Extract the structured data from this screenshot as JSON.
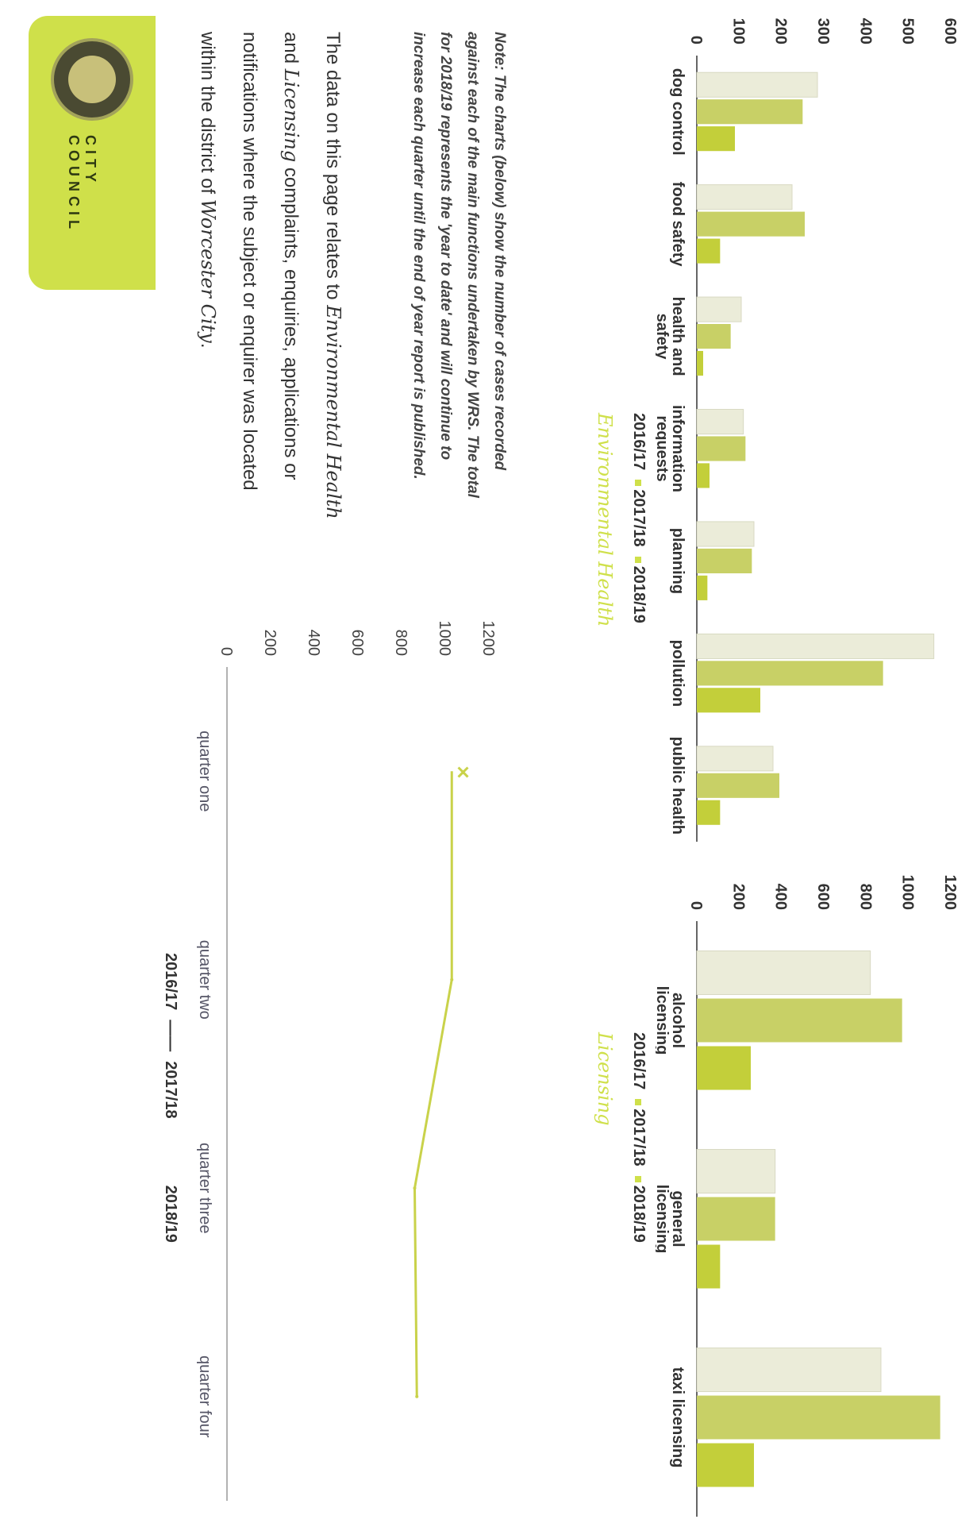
{
  "header": {
    "org_name": "CITY COUNCIL"
  },
  "intro": {
    "line1": "The data on this page relates to ",
    "eh": "Environmental Health",
    "line2": "and ",
    "lic": "Licensing",
    "line2b": " complaints, enquiries, applications or",
    "line3": "notifications where the subject or enquirer was located",
    "line4": "within the district of ",
    "city": "Worcester City",
    "line4b": "."
  },
  "note": {
    "l1": "Note: The charts (below) show the number of cases recorded",
    "l2": "against each of the main functions undertaken by WRS. The total",
    "l3": "for 2018/19 represents the 'year to date' and will continue to",
    "l4": "increase each quarter until the end of year report is published."
  },
  "legend": {
    "y1": "2016/17",
    "y2": "2017/18",
    "y3": "2018/19"
  },
  "charts": {
    "env_title": "Environmental Health",
    "lic_title": "Licensing"
  },
  "chart_data": [
    {
      "type": "line",
      "x": [
        "quarter one",
        "quarter two",
        "quarter three",
        "quarter four"
      ],
      "ylim": [
        0,
        1200
      ],
      "yticks": [
        0,
        200,
        400,
        600,
        800,
        1000,
        1200
      ],
      "series": [
        {
          "name": "2016/17",
          "color": "#ebecdc",
          "values": [
            null,
            null,
            null,
            null
          ]
        },
        {
          "name": "2017/18",
          "color": "#c9d24a",
          "values": [
            1030,
            1030,
            860,
            870
          ]
        },
        {
          "name": "2018/19",
          "color": "#c3cf3a",
          "values": [
            null,
            null,
            null,
            null
          ]
        }
      ],
      "legend_position": "top"
    },
    {
      "type": "bar",
      "title": "Environmental Health",
      "categories": [
        "dog control",
        "food safety",
        "health and safety",
        "information requests",
        "planning",
        "pollution",
        "public health"
      ],
      "ylim": [
        0,
        600
      ],
      "yticks": [
        0,
        100,
        200,
        300,
        400,
        500,
        600
      ],
      "series": [
        {
          "name": "2016/17",
          "color": "#ebecd9",
          "values": [
            285,
            225,
            105,
            110,
            135,
            560,
            180
          ]
        },
        {
          "name": "2017/18",
          "color": "#c8d066",
          "values": [
            250,
            255,
            80,
            115,
            130,
            440,
            195
          ]
        },
        {
          "name": "2018/19",
          "color": "#c3cf3a",
          "values": [
            90,
            55,
            15,
            30,
            25,
            150,
            55
          ]
        }
      ],
      "legend_position": "top"
    },
    {
      "type": "bar",
      "title": "Licensing",
      "categories": [
        "alcohol licensing",
        "general licensing",
        "taxi licensing"
      ],
      "ylim": [
        0,
        1200
      ],
      "yticks": [
        0,
        200,
        400,
        600,
        800,
        1000,
        1200
      ],
      "series": [
        {
          "name": "2016/17",
          "color": "#ebecd9",
          "values": [
            820,
            370,
            870
          ]
        },
        {
          "name": "2017/18",
          "color": "#c8d066",
          "values": [
            970,
            370,
            1150
          ]
        },
        {
          "name": "2018/19",
          "color": "#c3cf3a",
          "values": [
            255,
            110,
            270
          ]
        }
      ],
      "legend_position": "top"
    }
  ]
}
